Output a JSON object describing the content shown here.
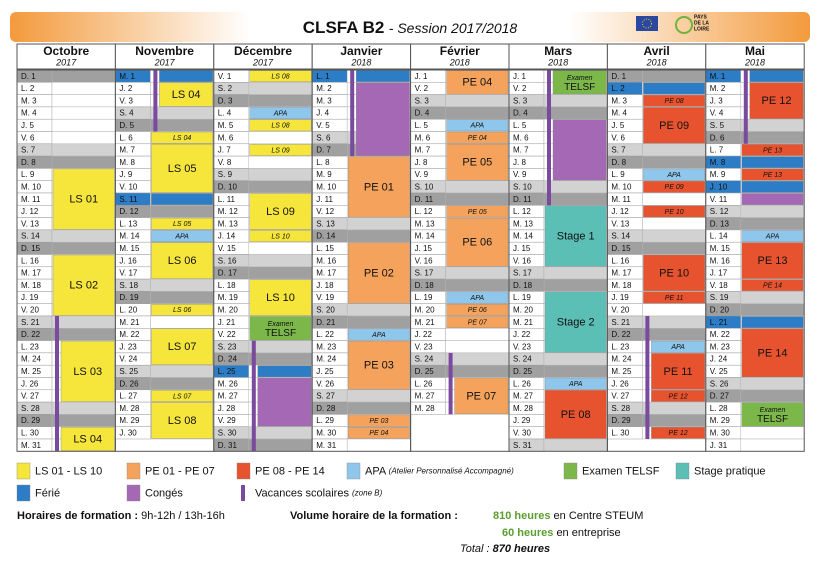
{
  "header": {
    "title": "CLSFA B2",
    "subtitle": "- Session 2017/2018",
    "logo_text": [
      "PAYS",
      "DE LA",
      "LOIRE"
    ]
  },
  "colors": {
    "ls": "#f6e63c",
    "pe1": "#f5a35c",
    "pe2": "#e8532f",
    "apa": "#8fc6ec",
    "exam": "#7cb74a",
    "stage": "#5cbfb6",
    "ferie": "#2c7cc6",
    "conges": "#a568b4",
    "vacances": "#7a4a9e"
  },
  "months": [
    {
      "name": "Octobre",
      "year": "2017",
      "days": [
        "D. 1",
        "L. 2",
        "M. 3",
        "M. 4",
        "J. 5",
        "V. 6",
        "S. 7",
        "D. 8",
        "L. 9",
        "M. 10",
        "M. 11",
        "J. 12",
        "V. 13",
        "S. 14",
        "D. 15",
        "L. 16",
        "M. 17",
        "M. 18",
        "J. 19",
        "V. 20",
        "S. 21",
        "D. 22",
        "L. 23",
        "M. 24",
        "M. 25",
        "J. 26",
        "V. 27",
        "S. 28",
        "D. 29",
        "L. 30",
        "M. 31"
      ],
      "events": [
        {
          "kind": "vacances",
          "from": 21,
          "to": 31
        },
        {
          "label": "LS 01",
          "kind": "ls",
          "from": 9,
          "to": 13
        },
        {
          "label": "LS 02",
          "kind": "ls",
          "from": 16,
          "to": 20
        },
        {
          "label": "LS 03",
          "kind": "ls",
          "from": 23,
          "to": 27
        },
        {
          "label": "LS 04",
          "kind": "ls",
          "from": 30,
          "to": 31
        }
      ]
    },
    {
      "name": "Novembre",
      "year": "2017",
      "days": [
        "M. 1",
        "J. 2",
        "V. 3",
        "S. 4",
        "D. 5",
        "L. 6",
        "M. 7",
        "M. 8",
        "J. 9",
        "V. 10",
        "S. 11",
        "D. 12",
        "L. 13",
        "M. 14",
        "M. 15",
        "J. 16",
        "V. 17",
        "S. 18",
        "D. 19",
        "L. 20",
        "M. 21",
        "M. 22",
        "J. 23",
        "V. 24",
        "S. 25",
        "D. 26",
        "L. 27",
        "M. 28",
        "M. 29",
        "J. 30"
      ],
      "events": [
        {
          "kind": "ferie",
          "from": 1,
          "to": 1
        },
        {
          "kind": "ferie",
          "from": 11,
          "to": 11
        },
        {
          "kind": "vacances",
          "from": 1,
          "to": 5
        },
        {
          "label": "LS 04",
          "kind": "ls",
          "from": 2,
          "to": 3
        },
        {
          "label": "LS 04",
          "kind": "ls",
          "from": 6,
          "to": 6
        },
        {
          "label": "LS 05",
          "kind": "ls",
          "from": 7,
          "to": 10
        },
        {
          "label": "LS 05",
          "kind": "ls",
          "from": 13,
          "to": 13
        },
        {
          "label": "APA",
          "kind": "apa",
          "from": 14,
          "to": 14
        },
        {
          "label": "LS 06",
          "kind": "ls",
          "from": 15,
          "to": 17
        },
        {
          "label": "LS 06",
          "kind": "ls",
          "from": 20,
          "to": 20
        },
        {
          "label": "LS 07",
          "kind": "ls",
          "from": 22,
          "to": 24
        },
        {
          "label": "LS 07",
          "kind": "ls",
          "from": 27,
          "to": 27
        },
        {
          "label": "LS 08",
          "kind": "ls",
          "from": 28,
          "to": 30
        }
      ]
    },
    {
      "name": "Décembre",
      "year": "2017",
      "days": [
        "V. 1",
        "S. 2",
        "D. 3",
        "L. 4",
        "M. 5",
        "M. 6",
        "J. 7",
        "V. 8",
        "S. 9",
        "D. 10",
        "L. 11",
        "M. 12",
        "M. 13",
        "J. 14",
        "V. 15",
        "S. 16",
        "D. 17",
        "L. 18",
        "M. 19",
        "M. 20",
        "J. 21",
        "V. 22",
        "S. 23",
        "D. 24",
        "L. 25",
        "M. 26",
        "M. 27",
        "J. 28",
        "V. 29",
        "S. 30",
        "D. 31"
      ],
      "events": [
        {
          "label": "LS 08",
          "kind": "ls",
          "from": 1,
          "to": 1
        },
        {
          "label": "APA",
          "kind": "apa",
          "from": 4,
          "to": 4
        },
        {
          "label": "LS 08",
          "kind": "ls",
          "from": 5,
          "to": 5
        },
        {
          "label": "LS 09",
          "kind": "ls",
          "from": 7,
          "to": 7
        },
        {
          "label": "LS 09",
          "kind": "ls",
          "from": 11,
          "to": 13
        },
        {
          "label": "LS 10",
          "kind": "ls",
          "from": 14,
          "to": 14
        },
        {
          "label": "LS 10",
          "kind": "ls",
          "from": 18,
          "to": 20
        },
        {
          "label": [
            "Examen",
            "TELSF"
          ],
          "kind": "exam",
          "from": 21,
          "to": 22
        },
        {
          "kind": "ferie",
          "from": 25,
          "to": 25
        },
        {
          "kind": "conges",
          "from": 26,
          "to": 29
        },
        {
          "kind": "vacances",
          "from": 23,
          "to": 31
        }
      ]
    },
    {
      "name": "Janvier",
      "year": "2018",
      "days": [
        "L. 1",
        "M. 2",
        "M. 3",
        "J. 4",
        "V. 5",
        "S. 6",
        "D. 7",
        "L. 8",
        "M. 9",
        "M. 10",
        "J. 11",
        "V. 12",
        "S. 13",
        "D. 14",
        "L. 15",
        "M. 16",
        "M. 17",
        "J. 18",
        "V. 19",
        "S. 20",
        "D. 21",
        "L. 22",
        "M. 23",
        "M. 24",
        "J. 25",
        "V. 26",
        "S. 27",
        "D. 28",
        "L. 29",
        "M. 30",
        "M. 31"
      ],
      "events": [
        {
          "kind": "ferie",
          "from": 1,
          "to": 1
        },
        {
          "kind": "conges",
          "from": 2,
          "to": 7
        },
        {
          "kind": "vacances",
          "from": 1,
          "to": 7
        },
        {
          "label": "PE 01",
          "kind": "pe1",
          "from": 8,
          "to": 12
        },
        {
          "label": "PE 02",
          "kind": "pe1",
          "from": 15,
          "to": 19
        },
        {
          "label": "APA",
          "kind": "apa",
          "from": 22,
          "to": 22
        },
        {
          "label": "PE 03",
          "kind": "pe1",
          "from": 23,
          "to": 26
        },
        {
          "label": "PE 03",
          "kind": "pe1",
          "from": 29,
          "to": 29
        },
        {
          "label": "PE 04",
          "kind": "pe1",
          "from": 30,
          "to": 30
        }
      ]
    },
    {
      "name": "Février",
      "year": "2018",
      "days": [
        "J. 1",
        "V. 2",
        "S. 3",
        "D. 4",
        "L. 5",
        "M. 6",
        "M. 7",
        "J. 8",
        "V. 9",
        "S. 10",
        "D. 11",
        "L. 12",
        "M. 13",
        "M. 14",
        "J. 15",
        "V. 16",
        "S. 17",
        "D. 18",
        "L. 19",
        "M. 20",
        "M. 21",
        "J. 22",
        "V. 23",
        "S. 24",
        "D. 25",
        "L. 26",
        "M. 27",
        "M. 28"
      ],
      "events": [
        {
          "label": "PE 04",
          "kind": "pe1",
          "from": 1,
          "to": 2
        },
        {
          "label": "APA",
          "kind": "apa",
          "from": 5,
          "to": 5
        },
        {
          "label": "PE 04",
          "kind": "pe1",
          "from": 6,
          "to": 6
        },
        {
          "label": "PE 05",
          "kind": "pe1",
          "from": 7,
          "to": 9
        },
        {
          "label": "PE 05",
          "kind": "pe1",
          "from": 12,
          "to": 12
        },
        {
          "label": "PE 06",
          "kind": "pe1",
          "from": 13,
          "to": 16
        },
        {
          "label": "APA",
          "kind": "apa",
          "from": 19,
          "to": 19
        },
        {
          "label": "PE 06",
          "kind": "pe1",
          "from": 20,
          "to": 20
        },
        {
          "label": "PE 07",
          "kind": "pe1",
          "from": 21,
          "to": 21
        },
        {
          "kind": "vacances",
          "from": 24,
          "to": 28
        },
        {
          "label": "PE 07",
          "kind": "pe1",
          "from": 26,
          "to": 28
        }
      ]
    },
    {
      "name": "Mars",
      "year": "2018",
      "days": [
        "J. 1",
        "V. 2",
        "S. 3",
        "D. 4",
        "L. 5",
        "M. 6",
        "M. 7",
        "J. 8",
        "V. 9",
        "S. 10",
        "D. 11",
        "L. 12",
        "M. 13",
        "M. 14",
        "J. 15",
        "V. 16",
        "S. 17",
        "D. 18",
        "L. 19",
        "M. 20",
        "M. 21",
        "J. 22",
        "V. 23",
        "S. 24",
        "D. 25",
        "L. 26",
        "M. 27",
        "M. 28",
        "J. 29",
        "V. 30",
        "S. 31"
      ],
      "events": [
        {
          "kind": "vacances",
          "from": 1,
          "to": 11
        },
        {
          "label": [
            "Examen",
            "TELSF"
          ],
          "kind": "exam",
          "from": 1,
          "to": 2
        },
        {
          "kind": "conges",
          "from": 5,
          "to": 9
        },
        {
          "label": "Stage 1",
          "kind": "stage",
          "from": 12,
          "to": 16
        },
        {
          "label": "Stage 2",
          "kind": "stage",
          "from": 19,
          "to": 23
        },
        {
          "label": "APA",
          "kind": "apa",
          "from": 26,
          "to": 26
        },
        {
          "label": "PE 08",
          "kind": "pe2",
          "from": 27,
          "to": 30
        }
      ]
    },
    {
      "name": "Avril",
      "year": "2018",
      "days": [
        "D. 1",
        "L. 2",
        "M. 3",
        "M. 4",
        "J. 5",
        "V. 6",
        "S. 7",
        "D. 8",
        "L. 9",
        "M. 10",
        "M. 11",
        "J. 12",
        "V. 13",
        "S. 14",
        "D. 15",
        "L. 16",
        "M. 17",
        "M. 18",
        "J. 19",
        "V. 20",
        "S. 21",
        "D. 22",
        "L. 23",
        "M. 24",
        "M. 25",
        "J. 26",
        "V. 27",
        "S. 28",
        "D. 29",
        "L. 30"
      ],
      "events": [
        {
          "kind": "ferie",
          "from": 2,
          "to": 2
        },
        {
          "label": "PE 08",
          "kind": "pe2",
          "from": 3,
          "to": 3
        },
        {
          "label": "PE 09",
          "kind": "pe2",
          "from": 4,
          "to": 6
        },
        {
          "label": "APA",
          "kind": "apa",
          "from": 9,
          "to": 9
        },
        {
          "label": "PE 09",
          "kind": "pe2",
          "from": 10,
          "to": 10
        },
        {
          "label": "PE 10",
          "kind": "pe2",
          "from": 12,
          "to": 12
        },
        {
          "label": "PE 10",
          "kind": "pe2",
          "from": 16,
          "to": 18
        },
        {
          "label": "PE 11",
          "kind": "pe2",
          "from": 19,
          "to": 19
        },
        {
          "kind": "vacances",
          "from": 21,
          "to": 30
        },
        {
          "label": "APA",
          "kind": "apa",
          "from": 23,
          "to": 23
        },
        {
          "label": "PE 11",
          "kind": "pe2",
          "from": 24,
          "to": 26
        },
        {
          "label": "PE 12",
          "kind": "pe2",
          "from": 27,
          "to": 27
        },
        {
          "label": "PE 12",
          "kind": "pe2",
          "from": 30,
          "to": 30
        }
      ]
    },
    {
      "name": "Mai",
      "year": "2018",
      "days": [
        "M. 1",
        "M. 2",
        "J. 3",
        "V. 4",
        "S. 5",
        "D. 6",
        "L. 7",
        "M. 8",
        "M. 9",
        "J. 10",
        "V. 11",
        "S. 12",
        "D. 13",
        "L. 14",
        "M. 15",
        "M. 16",
        "J. 17",
        "V. 18",
        "S. 19",
        "D. 20",
        "L. 21",
        "M. 22",
        "M. 23",
        "J. 24",
        "V. 25",
        "S. 26",
        "D. 27",
        "L. 28",
        "M. 29",
        "M. 30",
        "J. 31"
      ],
      "events": [
        {
          "kind": "ferie",
          "from": 1,
          "to": 1
        },
        {
          "kind": "vacances",
          "from": 1,
          "to": 6
        },
        {
          "label": "PE 12",
          "kind": "pe2",
          "from": 2,
          "to": 4
        },
        {
          "label": "PE 13",
          "kind": "pe2",
          "from": 7,
          "to": 7
        },
        {
          "kind": "ferie",
          "from": 8,
          "to": 8
        },
        {
          "label": "PE 13",
          "kind": "pe2",
          "from": 9,
          "to": 9
        },
        {
          "kind": "ferie",
          "from": 10,
          "to": 10
        },
        {
          "kind": "conges",
          "from": 11,
          "to": 11
        },
        {
          "label": "APA",
          "kind": "apa",
          "from": 14,
          "to": 14
        },
        {
          "label": "PE 13",
          "kind": "pe2",
          "from": 15,
          "to": 17
        },
        {
          "label": "PE 14",
          "kind": "pe2",
          "from": 18,
          "to": 18
        },
        {
          "kind": "ferie",
          "from": 21,
          "to": 21
        },
        {
          "label": "PE 14",
          "kind": "pe2",
          "from": 22,
          "to": 25
        },
        {
          "label": [
            "Examen",
            "TELSF"
          ],
          "kind": "exam",
          "from": 28,
          "to": 29
        }
      ]
    }
  ],
  "legend": [
    {
      "label": "LS 01 - LS 10",
      "kind": "ls"
    },
    {
      "label": "PE 01 - PE 07",
      "kind": "pe1"
    },
    {
      "label": "PE 08 - PE 14",
      "kind": "pe2"
    },
    {
      "label": "APA",
      "note": "(Atelier Personnalisé Accompagné)",
      "kind": "apa"
    },
    {
      "label": "Examen TELSF",
      "kind": "exam"
    },
    {
      "label": "Stage pratique",
      "kind": "stage"
    },
    {
      "label": "Férié",
      "kind": "ferie"
    },
    {
      "label": "Congés",
      "kind": "conges"
    },
    {
      "label": "Vacances scolaires",
      "note": "(zone B)",
      "kind": "vacances"
    }
  ],
  "footer": {
    "hours_label": "Horaires de formation :",
    "hours": "9h-12h / 13h-16h",
    "volume_label": "Volume horaire de la formation :",
    "centre_hours": "810 heures",
    "centre": "en Centre STEUM",
    "company_hours": "60 heures",
    "company": "en entreprise",
    "total_label": "Total :",
    "total": "870 heures"
  }
}
